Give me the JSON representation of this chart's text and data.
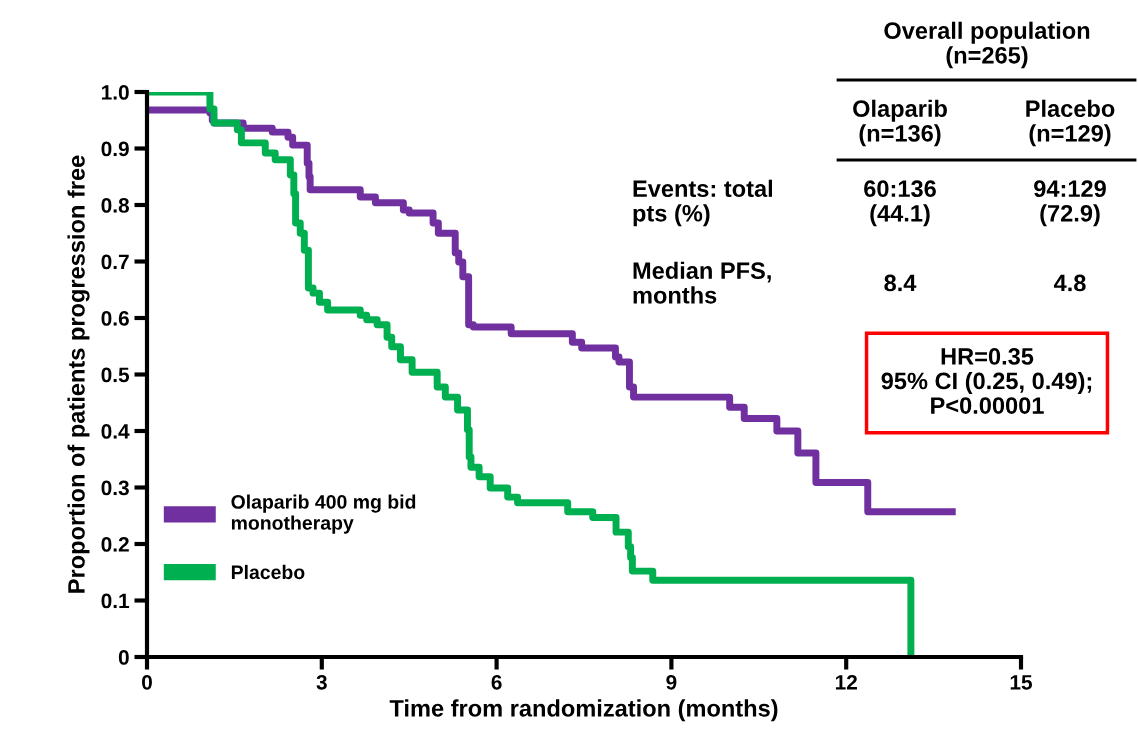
{
  "chart_data": {
    "type": "step",
    "xlabel": "Time from randomization (months)",
    "ylabel": "Proportion of patients progression free",
    "xlim": [
      0,
      15
    ],
    "xticks": [
      0,
      3,
      6,
      9,
      12,
      15
    ],
    "ylim": [
      0,
      1.0
    ],
    "yticks": [
      0,
      0.1,
      0.2,
      0.3,
      0.4,
      0.5,
      0.6,
      0.7,
      0.8,
      0.9,
      {
        "value": 1.0,
        "label": "1.0"
      }
    ],
    "grid": false,
    "legend": "lower left",
    "line_style": "solid",
    "marker": "none",
    "series": [
      {
        "name": "Olaparib 400 mg bid\nmonotherapy",
        "color": "#7030a0",
        "x": [
          0,
          1.08,
          1.12,
          1.15,
          1.65,
          2.15,
          2.42,
          2.5,
          2.75,
          2.78,
          2.8,
          3.66,
          3.92,
          4.4,
          4.5,
          4.91,
          5.0,
          5.29,
          5.35,
          5.42,
          5.52,
          5.6,
          6.25,
          7.3,
          7.46,
          8.04,
          8.1,
          8.28,
          8.35,
          10.0,
          10.25,
          10.81,
          11.17,
          11.48,
          12.37,
          13.88
        ],
        "values": [
          0.968,
          0.963,
          0.95,
          0.945,
          0.936,
          0.929,
          0.92,
          0.906,
          0.874,
          0.85,
          0.827,
          0.814,
          0.804,
          0.791,
          0.786,
          0.768,
          0.75,
          0.715,
          0.699,
          0.673,
          0.588,
          0.584,
          0.572,
          0.557,
          0.547,
          0.531,
          0.522,
          0.478,
          0.46,
          0.442,
          0.422,
          0.4,
          0.361,
          0.309,
          0.257,
          0.257
        ]
      },
      {
        "name": "Placebo",
        "color": "#00b050",
        "x": [
          0,
          1.08,
          1.15,
          1.55,
          1.62,
          2.03,
          2.2,
          2.46,
          2.52,
          2.55,
          2.63,
          2.7,
          2.77,
          2.85,
          2.96,
          3.1,
          3.66,
          3.77,
          3.95,
          4.12,
          4.2,
          4.35,
          4.55,
          4.98,
          5.12,
          5.33,
          5.5,
          5.53,
          5.56,
          5.7,
          5.89,
          6.19,
          6.36,
          7.22,
          7.65,
          8.05,
          8.26,
          8.3,
          8.33,
          8.68,
          13.11
        ],
        "values": [
          1.0,
          0.97,
          0.945,
          0.933,
          0.91,
          0.892,
          0.88,
          0.853,
          0.82,
          0.768,
          0.75,
          0.72,
          0.653,
          0.644,
          0.628,
          0.614,
          0.605,
          0.597,
          0.588,
          0.566,
          0.549,
          0.526,
          0.504,
          0.478,
          0.46,
          0.437,
          0.402,
          0.354,
          0.336,
          0.319,
          0.299,
          0.283,
          0.273,
          0.257,
          0.247,
          0.221,
          0.195,
          0.176,
          0.152,
          0.136,
          0
        ]
      }
    ],
    "annotations": [
      "Overall population\n(n=265)",
      "Olaparib\n(n=136)",
      "Placebo\n(n=129)",
      "Events: total\npts (%)",
      "60:136\n(44.1)",
      "94:129\n(72.9)",
      "Median PFS,\nmonths",
      "8.4",
      "4.8",
      "HR=0.35\n95% CI (0.25, 0.49);\nP<0.00001"
    ]
  }
}
